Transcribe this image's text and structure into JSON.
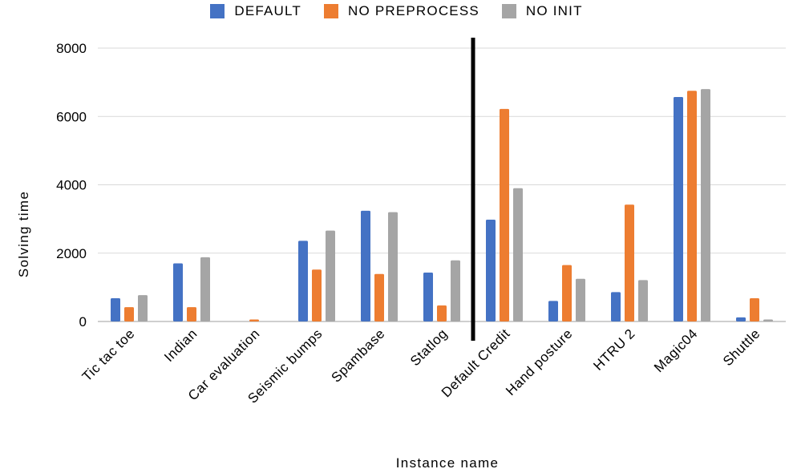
{
  "chart_data": {
    "type": "bar",
    "title": "",
    "xlabel": "Instance name",
    "ylabel": "Solving time",
    "ylim": [
      0,
      8000
    ],
    "yticks": [
      "0",
      "2000",
      "4000",
      "6000",
      "8000"
    ],
    "grid": true,
    "legend_position": "top",
    "categories": [
      "Tic tac toe",
      "Indian",
      "Car evaluation",
      "Seismic bumps",
      "Spambase",
      "Statlog",
      "Default Credit",
      "Hand posture",
      "HTRU 2",
      "Magic04",
      "Shuttle"
    ],
    "separator_after_category": "Statlog",
    "series": [
      {
        "name": "DEFAULT",
        "color": "#4472C4",
        "values": [
          680,
          1700,
          0,
          2360,
          3240,
          1430,
          2980,
          600,
          860,
          6570,
          120
        ]
      },
      {
        "name": "NO PREPROCESS",
        "color": "#ED7D31",
        "values": [
          420,
          420,
          60,
          1520,
          1390,
          470,
          6220,
          1650,
          3420,
          6750,
          680
        ]
      },
      {
        "name": "NO INIT",
        "color": "#A5A5A5",
        "values": [
          770,
          1880,
          0,
          2660,
          3200,
          1790,
          3900,
          1250,
          1210,
          6800,
          60
        ]
      }
    ]
  }
}
